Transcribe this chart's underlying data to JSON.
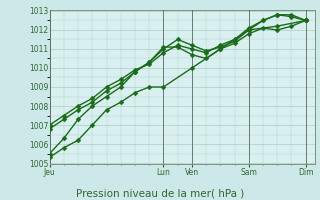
{
  "title": "",
  "xlabel": "Pression niveau de la mer( hPa )",
  "bg_color": "#cce8e8",
  "plot_bg_color": "#daf0f0",
  "grid_color": "#aacccc",
  "line_color": "#1a6b1a",
  "ylim": [
    1005,
    1013
  ],
  "yticks": [
    1005,
    1006,
    1007,
    1008,
    1009,
    1010,
    1011,
    1012,
    1013
  ],
  "day_labels": [
    "Jeu",
    "Lun",
    "Ven",
    "Sam",
    "Dim"
  ],
  "day_positions": [
    0,
    48,
    60,
    84,
    108
  ],
  "xlim": [
    0,
    112
  ],
  "vline_color": "#556655",
  "series": [
    {
      "x": [
        0,
        6,
        12,
        18,
        24,
        30,
        36,
        42,
        48,
        60,
        72,
        84,
        96,
        108
      ],
      "y": [
        1005.3,
        1005.8,
        1006.2,
        1007.0,
        1007.8,
        1008.2,
        1008.7,
        1009.0,
        1009.0,
        1010.0,
        1011.0,
        1012.0,
        1012.2,
        1012.5
      ]
    },
    {
      "x": [
        0,
        6,
        12,
        18,
        24,
        30,
        36,
        42,
        48,
        54,
        60,
        66,
        72,
        78,
        84,
        90,
        96,
        102,
        108
      ],
      "y": [
        1005.5,
        1006.3,
        1007.3,
        1008.0,
        1008.5,
        1009.0,
        1009.8,
        1010.3,
        1011.1,
        1011.1,
        1010.7,
        1010.5,
        1011.0,
        1011.3,
        1011.8,
        1012.1,
        1012.0,
        1012.2,
        1012.5
      ]
    },
    {
      "x": [
        0,
        6,
        12,
        18,
        24,
        30,
        36,
        42,
        48,
        54,
        60,
        66,
        72,
        78,
        84,
        90,
        96,
        102,
        108
      ],
      "y": [
        1006.8,
        1007.3,
        1007.8,
        1008.2,
        1008.8,
        1009.2,
        1009.8,
        1010.3,
        1011.0,
        1011.5,
        1011.2,
        1010.9,
        1011.1,
        1011.4,
        1012.0,
        1012.5,
        1012.8,
        1012.8,
        1012.5
      ]
    },
    {
      "x": [
        0,
        6,
        12,
        18,
        24,
        30,
        36,
        42,
        48,
        54,
        60,
        66,
        72,
        78,
        84,
        90,
        96,
        102,
        108
      ],
      "y": [
        1007.0,
        1007.5,
        1008.0,
        1008.4,
        1009.0,
        1009.4,
        1009.9,
        1010.2,
        1010.8,
        1011.2,
        1011.0,
        1010.8,
        1011.2,
        1011.5,
        1012.1,
        1012.5,
        1012.8,
        1012.7,
        1012.5
      ]
    }
  ],
  "marker": "D",
  "marker_size": 2.5,
  "linewidth": 1.0,
  "tick_fontsize": 5.5,
  "xlabel_fontsize": 7.5
}
